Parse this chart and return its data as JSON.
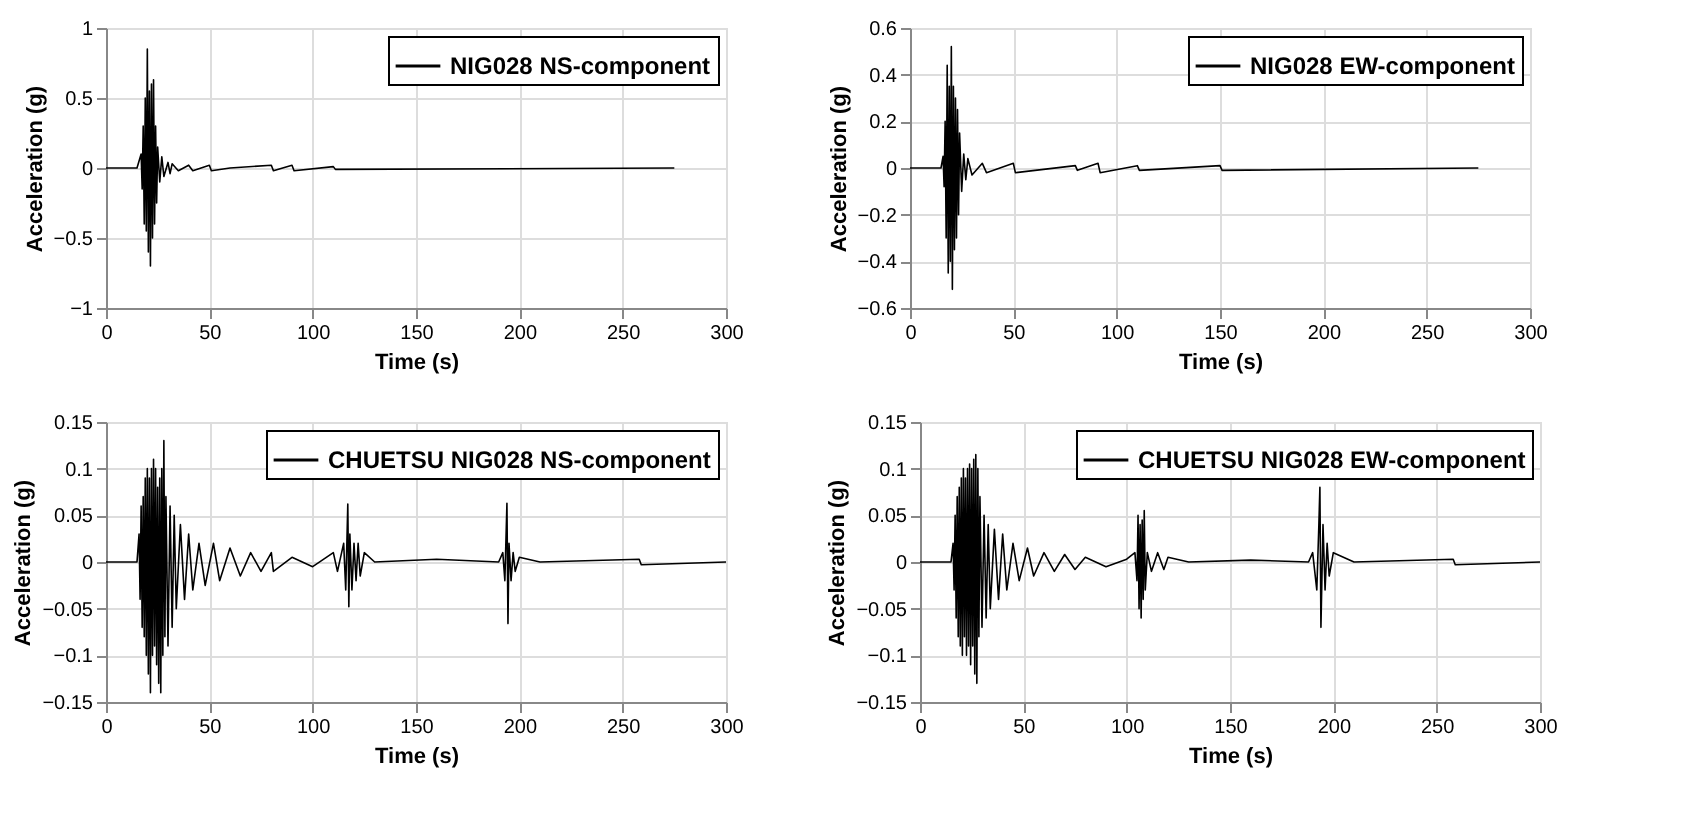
{
  "chart_data": [
    {
      "type": "line",
      "xlabel": "Time (s)",
      "ylabel": "Acceleration (g)",
      "xlim": [
        0,
        300
      ],
      "xticks": [
        0,
        50,
        100,
        150,
        200,
        250,
        300
      ],
      "ylim": [
        -1,
        1
      ],
      "yticks": [
        -1,
        -0.5,
        0,
        0.5,
        1
      ],
      "grid": true,
      "legend": "top right",
      "line_style": "solid",
      "series": [
        {
          "name": "NIG028 NS-component",
          "color": "#000000",
          "x": [
            0,
            15,
            17,
            17.5,
            18,
            18.5,
            19,
            19.5,
            20,
            20.5,
            21,
            21.5,
            22,
            22.5,
            23,
            23.5,
            24,
            24.5,
            25,
            26,
            27,
            28,
            30,
            31,
            32,
            35,
            40,
            42,
            50,
            51,
            60,
            80,
            81,
            90,
            91,
            110,
            111,
            275
          ],
          "values": [
            0,
            0,
            0.1,
            -0.15,
            0.3,
            -0.4,
            0.5,
            -0.45,
            0.85,
            -0.6,
            0.55,
            -0.7,
            0.6,
            -0.5,
            0.63,
            -0.4,
            0.3,
            -0.25,
            0.15,
            -0.1,
            0.08,
            -0.06,
            0.04,
            -0.04,
            0.03,
            -0.02,
            0.02,
            -0.02,
            0.02,
            -0.02,
            0,
            0.02,
            -0.02,
            0.02,
            -0.02,
            0.01,
            -0.01,
            0
          ]
        }
      ]
    },
    {
      "type": "line",
      "xlabel": "Time (s)",
      "ylabel": "Acceleration (g)",
      "xlim": [
        0,
        300
      ],
      "xticks": [
        0,
        50,
        100,
        150,
        200,
        250,
        300
      ],
      "ylim": [
        -0.6,
        0.6
      ],
      "yticks": [
        -0.6,
        -0.4,
        -0.2,
        0,
        0.2,
        0.4,
        0.6
      ],
      "grid": true,
      "legend": "top right",
      "line_style": "solid",
      "series": [
        {
          "name": "NIG028 EW-component",
          "color": "#000000",
          "x": [
            0,
            15,
            16,
            16.5,
            17,
            17.5,
            18,
            18.5,
            19,
            19.5,
            20,
            20.5,
            21,
            21.5,
            22,
            22.5,
            23,
            23.5,
            24,
            25,
            26,
            27,
            28,
            30,
            35,
            37,
            50,
            51,
            80,
            81,
            91,
            92,
            110,
            111,
            150,
            151,
            275
          ],
          "values": [
            0,
            0,
            0.05,
            -0.08,
            0.2,
            -0.3,
            0.44,
            -0.45,
            0.35,
            -0.4,
            0.52,
            -0.52,
            0.35,
            -0.35,
            0.3,
            -0.3,
            0.25,
            -0.2,
            0.15,
            -0.1,
            0.06,
            -0.05,
            0.04,
            -0.03,
            0.02,
            -0.02,
            0.02,
            -0.02,
            0.01,
            -0.01,
            0.02,
            -0.02,
            0.01,
            -0.01,
            0.01,
            -0.01,
            0
          ]
        }
      ]
    },
    {
      "type": "line",
      "xlabel": "Time (s)",
      "ylabel": "Acceleration (g)",
      "xlim": [
        0,
        300
      ],
      "xticks": [
        0,
        50,
        100,
        150,
        200,
        250,
        300
      ],
      "ylim": [
        -0.15,
        0.15
      ],
      "yticks": [
        -0.15,
        -0.1,
        -0.05,
        0,
        0.05,
        0.1,
        0.15
      ],
      "grid": true,
      "legend": "top right",
      "line_style": "solid",
      "series": [
        {
          "name": "CHUETSU NIG028 NS-component",
          "color": "#000000",
          "x": [
            0,
            15,
            16,
            16.5,
            17,
            17.5,
            18,
            18.5,
            19,
            19.5,
            20,
            20.5,
            21,
            21.5,
            22,
            22.5,
            23,
            23.5,
            24,
            24.5,
            25,
            25.5,
            26,
            26.5,
            27,
            27.5,
            28,
            28.5,
            29,
            30,
            31,
            32,
            33,
            34,
            36,
            38,
            40,
            42,
            45,
            48,
            52,
            55,
            60,
            65,
            70,
            75,
            80,
            81,
            90,
            100,
            110,
            112,
            115,
            116,
            117,
            117.5,
            118,
            119,
            120,
            121,
            122,
            123,
            125,
            130,
            160,
            190,
            192,
            193,
            194,
            194.5,
            195,
            196,
            197,
            198,
            200,
            210,
            258,
            259,
            300
          ],
          "values": [
            0,
            0,
            0.03,
            -0.04,
            0.06,
            -0.07,
            0.07,
            -0.08,
            0.09,
            -0.1,
            0.1,
            -0.12,
            0.09,
            -0.14,
            0.1,
            -0.1,
            0.11,
            -0.09,
            0.1,
            -0.11,
            0.08,
            -0.13,
            0.09,
            -0.14,
            0.1,
            -0.1,
            0.13,
            -0.08,
            0.07,
            -0.09,
            0.06,
            -0.07,
            0.05,
            -0.05,
            0.04,
            -0.04,
            0.03,
            -0.03,
            0.02,
            -0.025,
            0.02,
            -0.02,
            0.015,
            -0.015,
            0.01,
            -0.01,
            0.01,
            -0.01,
            0.005,
            -0.005,
            0.01,
            -0.01,
            0.02,
            -0.03,
            0.062,
            -0.048,
            0.03,
            -0.03,
            0.02,
            -0.02,
            0.02,
            -0.015,
            0.01,
            0,
            0.003,
            0,
            0.01,
            -0.02,
            0.063,
            -0.066,
            0.02,
            -0.02,
            0.01,
            -0.01,
            0.005,
            0,
            0.003,
            -0.003,
            0
          ]
        }
      ]
    },
    {
      "type": "line",
      "xlabel": "Time (s)",
      "ylabel": "Acceleration (g)",
      "xlim": [
        0,
        300
      ],
      "xticks": [
        0,
        50,
        100,
        150,
        200,
        250,
        300
      ],
      "ylim": [
        -0.15,
        0.15
      ],
      "yticks": [
        -0.15,
        -0.1,
        -0.05,
        0,
        0.05,
        0.1,
        0.15
      ],
      "grid": true,
      "legend": "top right",
      "line_style": "solid",
      "series": [
        {
          "name": "CHUETSU NIG028 EW-component",
          "color": "#000000",
          "x": [
            0,
            15,
            16,
            16.5,
            17,
            17.5,
            18,
            18.5,
            19,
            19.5,
            20,
            20.5,
            21,
            21.5,
            22,
            22.5,
            23,
            23.5,
            24,
            24.5,
            25,
            25.5,
            26,
            26.5,
            27,
            27.5,
            28,
            28.5,
            29,
            30,
            31,
            32,
            33,
            34,
            36,
            38,
            40,
            42,
            45,
            48,
            52,
            55,
            60,
            65,
            70,
            75,
            80,
            90,
            100,
            104,
            105,
            105.5,
            106,
            106.5,
            107,
            107.5,
            108,
            108.5,
            109,
            110,
            112,
            115,
            118,
            120,
            130,
            160,
            188,
            190,
            192,
            193,
            193.5,
            194,
            195,
            196,
            197,
            198,
            200,
            210,
            258,
            259,
            300
          ],
          "values": [
            0,
            0,
            0.02,
            -0.03,
            0.05,
            -0.06,
            0.07,
            -0.08,
            0.08,
            -0.09,
            0.09,
            -0.1,
            0.1,
            -0.08,
            0.09,
            -0.1,
            0.1,
            -0.09,
            0.105,
            -0.11,
            0.1,
            -0.09,
            0.11,
            -0.12,
            0.115,
            -0.13,
            0.1,
            -0.08,
            0.07,
            -0.07,
            0.05,
            -0.06,
            0.04,
            -0.05,
            0.035,
            -0.04,
            0.03,
            -0.03,
            0.02,
            -0.02,
            0.015,
            -0.015,
            0.01,
            -0.01,
            0.008,
            -0.008,
            0.005,
            -0.005,
            0.003,
            0.01,
            -0.02,
            0.05,
            -0.05,
            0.04,
            -0.06,
            0.045,
            -0.04,
            0.055,
            -0.03,
            0.01,
            -0.01,
            0.01,
            -0.008,
            0.005,
            0,
            0.002,
            0,
            0.01,
            -0.03,
            0.04,
            0.08,
            -0.07,
            0.04,
            -0.03,
            0.02,
            -0.015,
            0.01,
            0,
            0.003,
            -0.003,
            0
          ]
        }
      ]
    }
  ]
}
